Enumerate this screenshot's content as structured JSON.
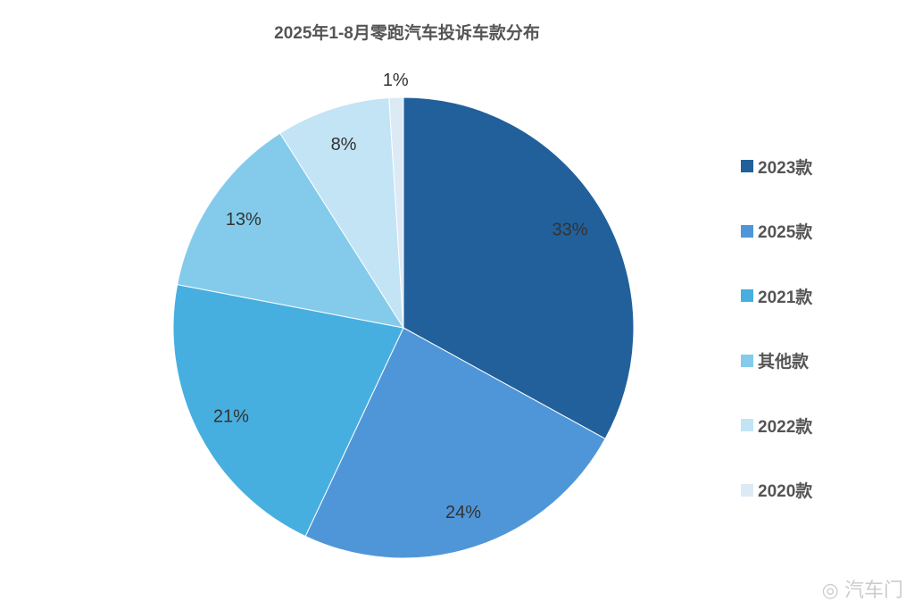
{
  "chart_data": {
    "type": "pie",
    "title": "2025年1-8月零跑汽车投诉车款分布",
    "categories": [
      "2023款",
      "2025款",
      "2021款",
      "其他款",
      "2022款",
      "2020款"
    ],
    "values": [
      33,
      24,
      21,
      13,
      8,
      1
    ],
    "labels": [
      "33%",
      "24%",
      "21%",
      "13%",
      "8%",
      "1%"
    ],
    "colors": [
      "#22609b",
      "#4f96d8",
      "#47afe0",
      "#84cbeb",
      "#c2e4f5",
      "#dceaf5"
    ],
    "legend_position": "right"
  },
  "watermark": "汽车门"
}
